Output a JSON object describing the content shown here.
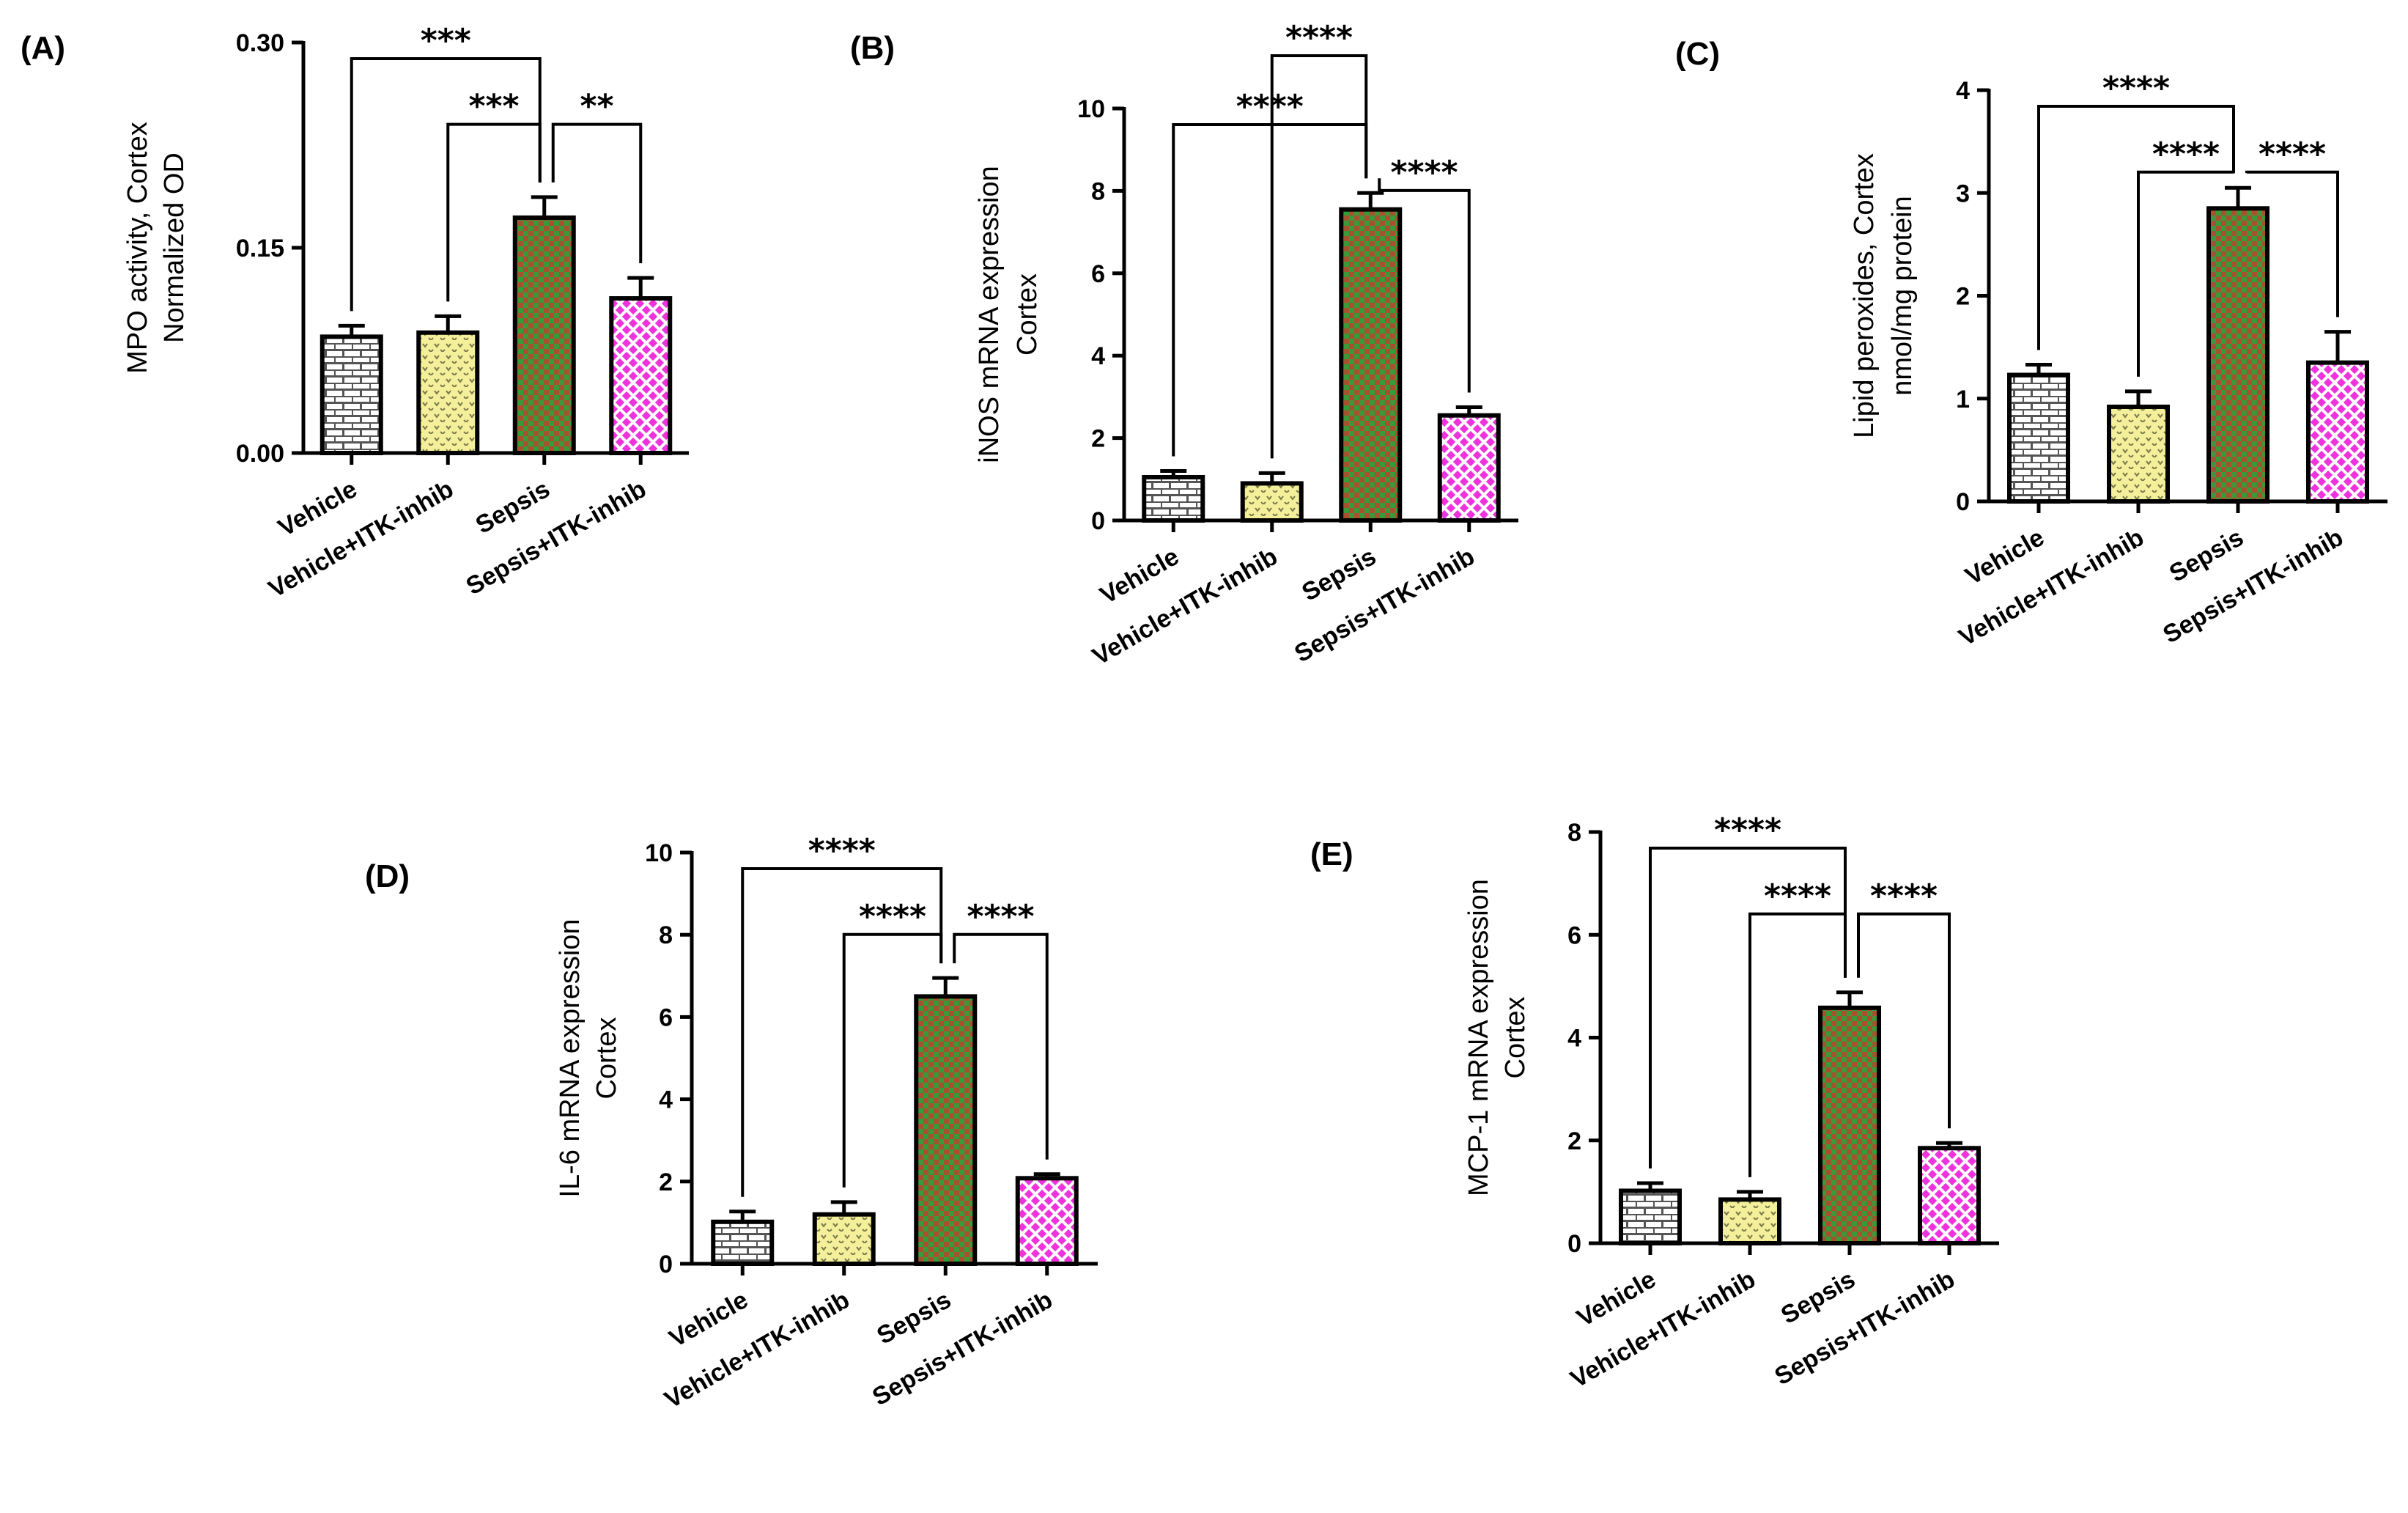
{
  "chart_data": [
    {
      "panel": "(A)",
      "type": "bar",
      "categories": [
        "Vehicle",
        "Vehicle+ITK-inhib",
        "Sepsis",
        "Sepsis+ITK-inhib"
      ],
      "values": [
        0.085,
        0.088,
        0.172,
        0.113
      ],
      "errors": [
        0.008,
        0.012,
        0.015,
        0.015
      ],
      "ylabel_lines": [
        "MPO activity, Cortex",
        "Normalized  OD"
      ],
      "ylim": [
        0,
        0.3
      ],
      "yticks": [
        0,
        0.15,
        0.3
      ],
      "ytick_labels": [
        "0.00",
        "0.15",
        "0.30"
      ],
      "significance": [
        {
          "from": 0,
          "to": 2,
          "label": "***"
        },
        {
          "from": 1,
          "to": 2,
          "label": "***"
        },
        {
          "from": 2,
          "to": 3,
          "label": "**"
        }
      ]
    },
    {
      "panel": "(B)",
      "type": "bar",
      "categories": [
        "Vehicle",
        "Vehicle+ITK-inhib",
        "Sepsis",
        "Sepsis+ITK-inhib"
      ],
      "values": [
        1.05,
        0.9,
        7.55,
        2.55
      ],
      "errors": [
        0.15,
        0.25,
        0.4,
        0.2
      ],
      "ylabel_lines": [
        "iNOS mRNA expression",
        "Cortex"
      ],
      "ylim": [
        0,
        10
      ],
      "yticks": [
        0,
        2,
        4,
        6,
        8,
        10
      ],
      "ytick_labels": [
        "0",
        "2",
        "4",
        "6",
        "8",
        "10"
      ],
      "significance": [
        {
          "from": 1,
          "to": 2,
          "label": "****"
        },
        {
          "from": 0,
          "to": 2,
          "label": "****"
        },
        {
          "from": 2,
          "to": 3,
          "label": "****"
        }
      ]
    },
    {
      "panel": "(C)",
      "type": "bar",
      "categories": [
        "Vehicle",
        "Vehicle+ITK-inhib",
        "Sepsis",
        "Sepsis+ITK-inhib"
      ],
      "values": [
        1.23,
        0.92,
        2.85,
        1.35
      ],
      "errors": [
        0.1,
        0.15,
        0.2,
        0.3
      ],
      "ylabel_lines": [
        "Lipid peroxides, Cortex",
        "nmol/mg protein"
      ],
      "ylim": [
        0,
        4
      ],
      "yticks": [
        0,
        1,
        2,
        3,
        4
      ],
      "ytick_labels": [
        "0",
        "1",
        "2",
        "3",
        "4"
      ],
      "significance": [
        {
          "from": 0,
          "to": 2,
          "label": "****"
        },
        {
          "from": 1,
          "to": 2,
          "label": "****"
        },
        {
          "from": 2,
          "to": 3,
          "label": "****"
        }
      ]
    },
    {
      "panel": "(D)",
      "type": "bar",
      "categories": [
        "Vehicle",
        "Vehicle+ITK-inhib",
        "Sepsis",
        "Sepsis+ITK-inhib"
      ],
      "values": [
        1.02,
        1.2,
        6.5,
        2.08
      ],
      "errors": [
        0.25,
        0.3,
        0.45,
        0.1
      ],
      "ylabel_lines": [
        "IL-6 mRNA expression",
        "Cortex"
      ],
      "ylim": [
        0,
        10
      ],
      "yticks": [
        0,
        2,
        4,
        6,
        8,
        10
      ],
      "ytick_labels": [
        "0",
        "2",
        "4",
        "6",
        "8",
        "10"
      ],
      "significance": [
        {
          "from": 0,
          "to": 2,
          "label": "****"
        },
        {
          "from": 1,
          "to": 2,
          "label": "****"
        },
        {
          "from": 2,
          "to": 3,
          "label": "****"
        }
      ]
    },
    {
      "panel": "(E)",
      "type": "bar",
      "categories": [
        "Vehicle",
        "Vehicle+ITK-inhib",
        "Sepsis",
        "Sepsis+ITK-inhib"
      ],
      "values": [
        1.02,
        0.85,
        4.58,
        1.85
      ],
      "errors": [
        0.15,
        0.15,
        0.3,
        0.1
      ],
      "ylabel_lines": [
        "MCP-1 mRNA expression",
        "Cortex"
      ],
      "ylim": [
        0,
        8
      ],
      "yticks": [
        0,
        2,
        4,
        6,
        8
      ],
      "ytick_labels": [
        "0",
        "2",
        "4",
        "6",
        "8"
      ],
      "significance": [
        {
          "from": 0,
          "to": 2,
          "label": "****"
        },
        {
          "from": 1,
          "to": 2,
          "label": "****"
        },
        {
          "from": 2,
          "to": 3,
          "label": "****"
        }
      ]
    }
  ],
  "bar_colors": {
    "vehicle": "#ffffff",
    "vehicle_itk": "#f4ef9a",
    "sepsis": "#3a9a3a",
    "sepsis_itk": "#ee33dd"
  },
  "pattern_colors": {
    "vehicle": "#555555",
    "vehicle_itk": "#7a7a4a",
    "sepsis": "#c0402a",
    "sepsis_itk": "#ffffff"
  }
}
